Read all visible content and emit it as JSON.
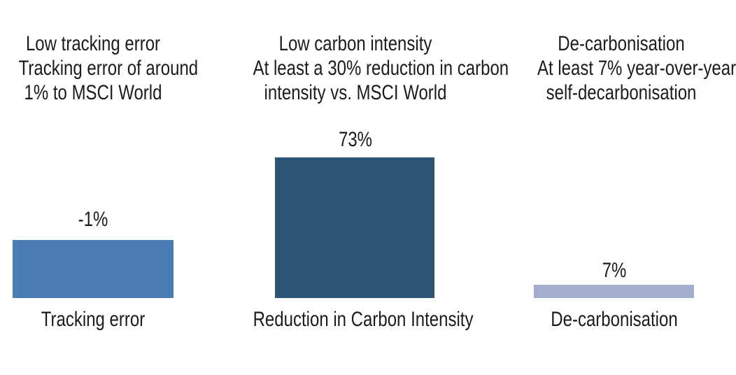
{
  "chart_data": {
    "type": "bar",
    "title": "",
    "xlabel": "",
    "ylabel": "",
    "grid": false,
    "legend": false,
    "categories": [
      "Tracking error",
      "Reduction in Carbon Intensity",
      "De-carbonisation"
    ],
    "values": [
      -1,
      73,
      7
    ],
    "value_labels": [
      "-1%",
      "73%",
      "7%"
    ],
    "columns": [
      {
        "header": [
          "Low tracking error",
          "Tracking error of around",
          "1% to MSCI World"
        ],
        "value": -1,
        "value_label": "-1%",
        "bar_color": "#4a7db1",
        "axis_label": "Tracking error"
      },
      {
        "header": [
          "Low carbon intensity",
          "At least a 30% reduction in carbon",
          "intensity vs. MSCI World"
        ],
        "value": 73,
        "value_label": "73%",
        "bar_color": "#2e5475",
        "axis_label": "Reduction in Carbon Intensity"
      },
      {
        "header": [
          "De-carbonisation",
          "At least 7% year-over-year",
          "self-decarbonisation"
        ],
        "value": 7,
        "value_label": "7%",
        "bar_color": "#a4adcf",
        "axis_label": "De-carbonisation"
      }
    ],
    "colors": {
      "steel_blue_bar": "#4a7db1",
      "dark_blue_bar": "#2e5475",
      "light_periwinkle_bar": "#a4adcf",
      "text": "#1b1b1b",
      "background": "#ffffff"
    }
  }
}
